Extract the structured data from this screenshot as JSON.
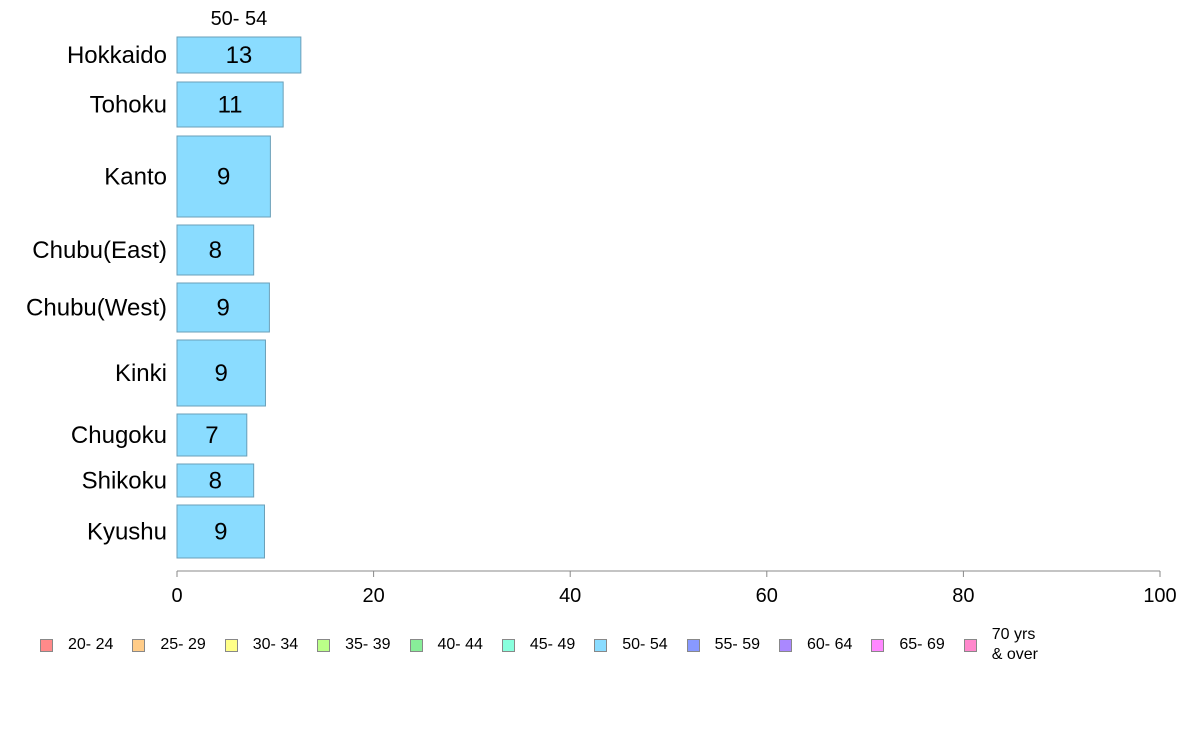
{
  "chart_data": {
    "type": "bar",
    "orientation": "horizontal",
    "stacked": true,
    "categories": [
      "Hokkaido",
      "Tohoku",
      "Kanto",
      "Chubu(East)",
      "Chubu(West)",
      "Kinki",
      "Chugoku",
      "Shikoku",
      "Kyushu"
    ],
    "series": [
      {
        "name": "50- 54",
        "color": "#8adcff",
        "values": [
          13,
          11,
          9,
          8,
          9,
          9,
          7,
          8,
          9
        ],
        "display_values": [
          12.6,
          10.8,
          9.5,
          7.8,
          9.4,
          9.0,
          7.1,
          7.8,
          8.9
        ]
      }
    ],
    "series_header": "50- 54",
    "xlim": [
      0,
      100
    ],
    "xticks": [
      "0",
      "20",
      "40",
      "60",
      "80",
      "100"
    ],
    "grid": false,
    "legend": {
      "position": "bottom",
      "items": [
        {
          "label": "20- 24",
          "color": "#ff8a8a"
        },
        {
          "label": "25- 29",
          "color": "#ffcc88"
        },
        {
          "label": "30- 34",
          "color": "#ffff88"
        },
        {
          "label": "35- 39",
          "color": "#bbff88"
        },
        {
          "label": "40- 44",
          "color": "#88ee99"
        },
        {
          "label": "45- 49",
          "color": "#88ffdd"
        },
        {
          "label": "50- 54",
          "color": "#8adcff"
        },
        {
          "label": "55- 59",
          "color": "#8899ff"
        },
        {
          "label": "60- 64",
          "color": "#aa88ff"
        },
        {
          "label": "65- 69",
          "color": "#ff88ff"
        },
        {
          "label": "70 yrs\n& over",
          "color": "#ff88cc"
        }
      ]
    }
  }
}
